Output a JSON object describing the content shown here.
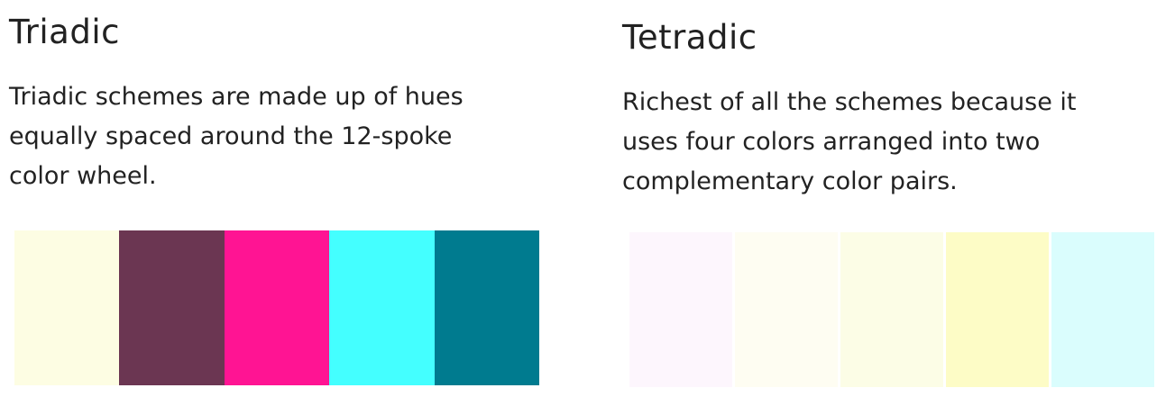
{
  "triadic": {
    "title": "Triadic",
    "description_lines": [
      "Triadic schemes are made up of hues",
      "equally spaced around the 12-spoke",
      "color wheel."
    ],
    "swatches": [
      "#fdfde3",
      "#6b3652",
      "#ff1493",
      "#44ffff",
      "#007b8f"
    ]
  },
  "tetradic": {
    "title": "Tetradic",
    "description_lines": [
      "Richest of all the schemes because it",
      "uses four colors arranged into two",
      "complementary color pairs."
    ],
    "swatches": [
      "#fdf6fd",
      "#fefdf2",
      "#fcfde6",
      "#fdfcc6",
      "#dafdfd"
    ]
  }
}
